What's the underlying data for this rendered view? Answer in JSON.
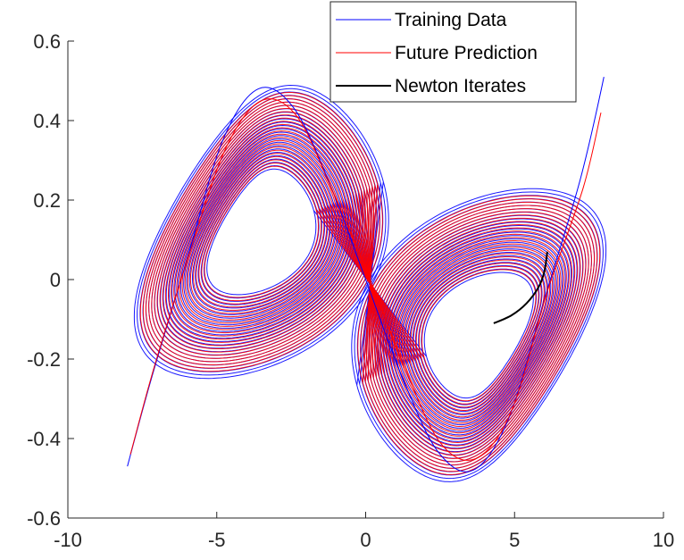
{
  "chart_data": {
    "type": "line",
    "title": "",
    "xlabel": "",
    "ylabel": "",
    "xlim": [
      -10,
      10
    ],
    "ylim": [
      -0.6,
      0.6
    ],
    "xticks": [
      -10,
      -5,
      0,
      5,
      10
    ],
    "yticks": [
      -0.6,
      -0.4,
      -0.2,
      0,
      0.2,
      0.4,
      0.6
    ],
    "xtick_labels": [
      "-10",
      "-5",
      "0",
      "5",
      "10"
    ],
    "ytick_labels": [
      "-0.6",
      "-0.4",
      "-0.2",
      "0",
      "0.2",
      "0.4",
      "0.6"
    ],
    "grid": false,
    "legend_position": "top-right",
    "series": [
      {
        "name": "Training Data",
        "color": "#0000ff",
        "description_points": "double-scroll attractor loops",
        "x": [
          -8.0,
          -7.2,
          -6.0,
          -4.8,
          -3.6,
          -2.4,
          -1.2,
          0.0,
          1.2,
          2.4,
          3.6,
          4.8,
          6.0,
          7.2,
          8.0,
          7.2,
          6.0,
          4.8,
          3.6,
          2.4,
          1.2,
          0.0,
          -1.2,
          -2.4,
          -3.6,
          -4.8,
          -6.0,
          -7.2,
          -8.0
        ],
        "y": [
          -0.47,
          -0.25,
          0.05,
          0.35,
          0.48,
          0.43,
          0.24,
          0.0,
          -0.24,
          -0.43,
          -0.48,
          -0.35,
          -0.05,
          0.25,
          0.51,
          0.25,
          -0.05,
          -0.35,
          -0.48,
          -0.43,
          -0.24,
          0.0,
          0.24,
          0.43,
          0.48,
          0.35,
          0.05,
          -0.25,
          -0.47
        ]
      },
      {
        "name": "Future Prediction",
        "color": "#ff0000",
        "x": [
          -7.9,
          -7.1,
          -5.9,
          -4.7,
          -3.5,
          -2.3,
          -1.1,
          0.1,
          1.3,
          2.5,
          3.7,
          4.9,
          6.1,
          7.3,
          7.9
        ],
        "y": [
          -0.44,
          -0.22,
          0.07,
          0.33,
          0.45,
          0.41,
          0.22,
          0.01,
          -0.22,
          -0.41,
          -0.45,
          -0.33,
          -0.03,
          0.23,
          0.42
        ]
      },
      {
        "name": "Newton Iterates",
        "color": "#000000",
        "x": [
          4.3,
          4.9,
          5.4,
          5.8,
          6.0,
          6.1
        ],
        "y": [
          -0.11,
          -0.09,
          -0.06,
          -0.02,
          0.02,
          0.07
        ]
      }
    ]
  }
}
